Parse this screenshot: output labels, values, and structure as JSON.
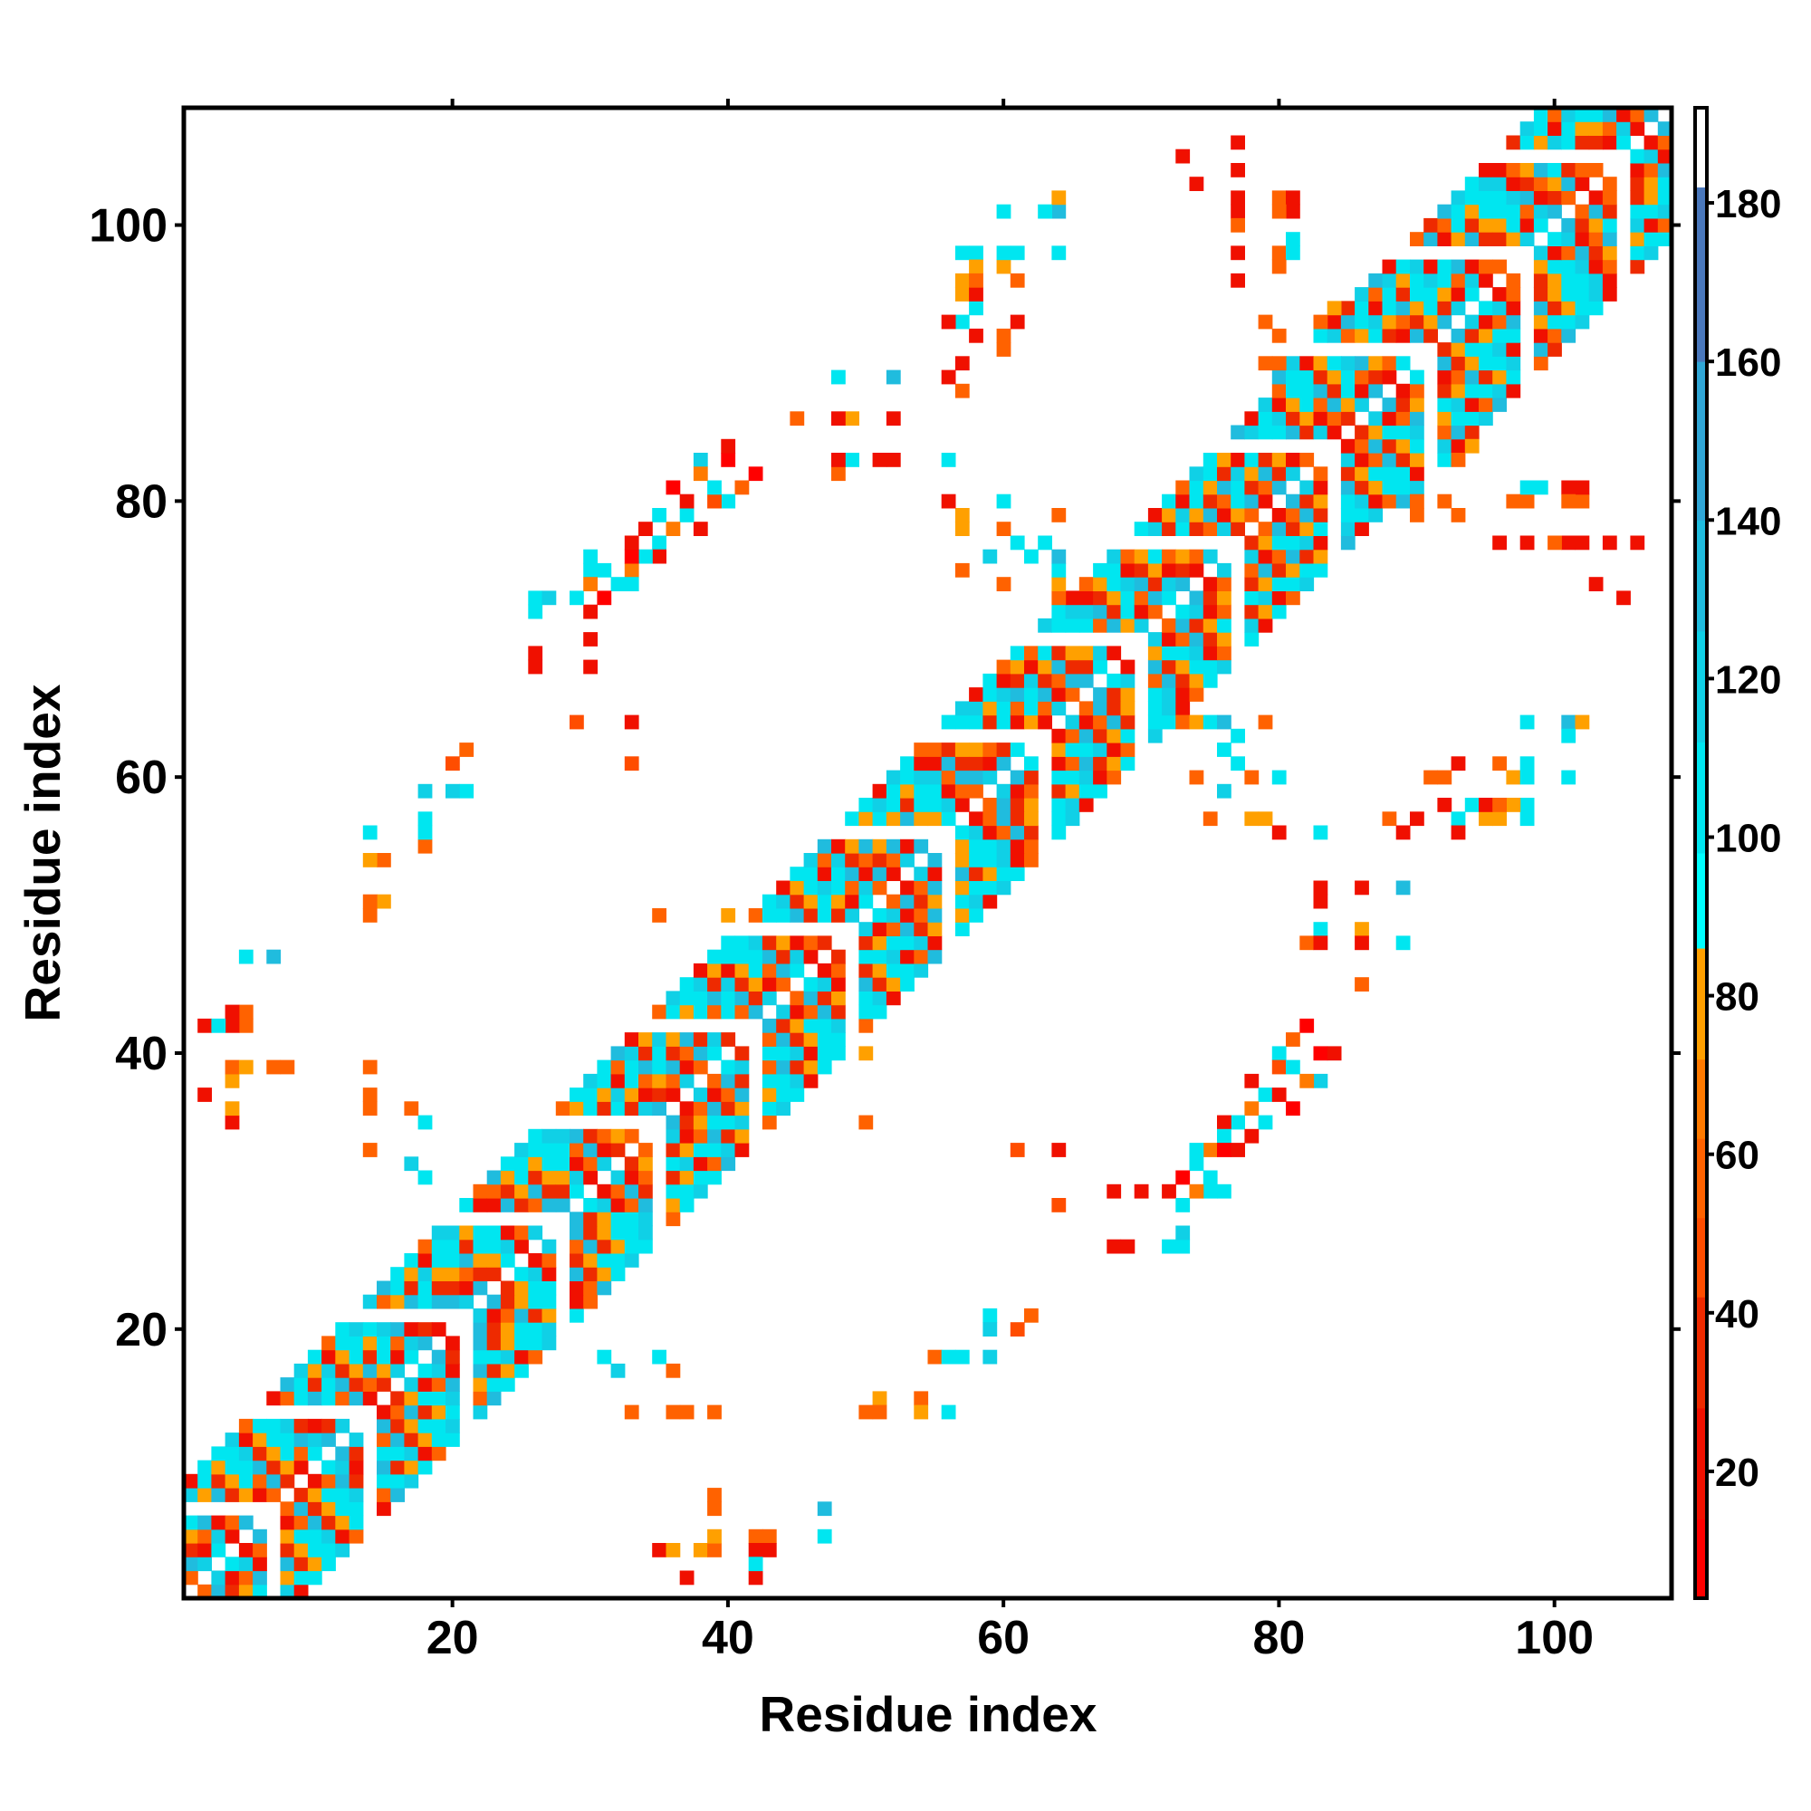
{
  "chart_data": {
    "type": "heatmap",
    "title": "",
    "xlabel": "Residue index",
    "ylabel": "Residue index",
    "xlim": [
      0.5,
      108.5
    ],
    "ylim": [
      0.5,
      108.5
    ],
    "x_ticks": [
      20,
      40,
      60,
      80,
      100
    ],
    "y_ticks": [
      20,
      40,
      60,
      80,
      100
    ],
    "x_tick_labels": [
      "20",
      "40",
      "60",
      "80",
      "100"
    ],
    "y_tick_labels": [
      "20",
      "40",
      "60",
      "80",
      "100"
    ],
    "symmetric": true,
    "grid": false,
    "n_residues": 108,
    "colorbar": {
      "range": [
        4,
        192
      ],
      "ticks": [
        20,
        40,
        60,
        80,
        100,
        120,
        140,
        160,
        180
      ],
      "tick_labels": [
        "20",
        "40",
        "60",
        "80",
        "100",
        "120",
        "140",
        "160",
        "180"
      ],
      "placement": "right",
      "bins": [
        {
          "max": 14,
          "color": "#ff0000"
        },
        {
          "max": 28,
          "color": "#f01000"
        },
        {
          "max": 42,
          "color": "#ee2a00"
        },
        {
          "max": 52,
          "color": "#ff4d00"
        },
        {
          "max": 62,
          "color": "#ff6200"
        },
        {
          "max": 72,
          "color": "#ff7a00"
        },
        {
          "max": 86,
          "color": "#ffa000"
        },
        {
          "max": 98,
          "color": "#00ffff"
        },
        {
          "max": 112,
          "color": "#00e6f0"
        },
        {
          "max": 126,
          "color": "#10d0e6"
        },
        {
          "max": 140,
          "color": "#20bcde"
        },
        {
          "max": 160,
          "color": "#30a6d6"
        },
        {
          "max": 182,
          "color": "#4a78bc"
        },
        {
          "max": 999,
          "color": "#ffffff"
        }
      ]
    },
    "band": {
      "description_offsets": [
        1,
        2,
        3,
        4,
        5,
        6,
        7,
        8
      ],
      "offset_values": [
        100,
        120,
        20,
        60,
        130,
        40,
        75,
        105
      ],
      "row_variation": "310241352041325104231450213402153042130524130254103214502314052134025130421053241302514203541023510432"
    },
    "contacts": [
      [
        82,
        42,
        10
      ],
      [
        81,
        41,
        60
      ],
      [
        83,
        40,
        10
      ],
      [
        80,
        40,
        110
      ],
      [
        84,
        40,
        20
      ],
      [
        80,
        39,
        45
      ],
      [
        81,
        39,
        100
      ],
      [
        83,
        38,
        120
      ],
      [
        82,
        38,
        70
      ],
      [
        78,
        38,
        15
      ],
      [
        79,
        37,
        110
      ],
      [
        80,
        37,
        20
      ],
      [
        81,
        36,
        10
      ],
      [
        78,
        36,
        65
      ],
      [
        77,
        35,
        110
      ],
      [
        76,
        35,
        20
      ],
      [
        79,
        35,
        110
      ],
      [
        78,
        34,
        15
      ],
      [
        76,
        34,
        100
      ],
      [
        75,
        33,
        70
      ],
      [
        74,
        33,
        110
      ],
      [
        76,
        33,
        10
      ],
      [
        77,
        33,
        25
      ],
      [
        74,
        32,
        110
      ],
      [
        73,
        31,
        10
      ],
      [
        75,
        31,
        100
      ],
      [
        76,
        30,
        110
      ],
      [
        75,
        30,
        110
      ],
      [
        72,
        30,
        20
      ],
      [
        73,
        29,
        110
      ],
      [
        74,
        30,
        70
      ],
      [
        61,
        33,
        45
      ],
      [
        64,
        33,
        15
      ],
      [
        64,
        29,
        45
      ],
      [
        68,
        30,
        15
      ],
      [
        70,
        30,
        20
      ],
      [
        68,
        26,
        15
      ],
      [
        69,
        26,
        15
      ],
      [
        72,
        26,
        110
      ],
      [
        73,
        26,
        110
      ],
      [
        73,
        27,
        120
      ],
      [
        59,
        21,
        110
      ],
      [
        59,
        20,
        120
      ],
      [
        61,
        20,
        45
      ],
      [
        62,
        21,
        60
      ],
      [
        55,
        18,
        60
      ],
      [
        56,
        18,
        110
      ],
      [
        57,
        18,
        110
      ],
      [
        59,
        18,
        120
      ],
      [
        50,
        14,
        60
      ],
      [
        51,
        15,
        75
      ],
      [
        51,
        14,
        60
      ],
      [
        54,
        15,
        60
      ],
      [
        54,
        14,
        75
      ],
      [
        56,
        14,
        110
      ],
      [
        33,
        14,
        60
      ],
      [
        36,
        14,
        60
      ],
      [
        37,
        14,
        60
      ],
      [
        39,
        14,
        60
      ],
      [
        35,
        18,
        110
      ],
      [
        36,
        17,
        60
      ],
      [
        32,
        17,
        120
      ],
      [
        31,
        18,
        110
      ],
      [
        39,
        8,
        60
      ],
      [
        39,
        7,
        60
      ],
      [
        38,
        4,
        75
      ],
      [
        39,
        4,
        60
      ],
      [
        39,
        5,
        75
      ],
      [
        42,
        5,
        60
      ],
      [
        43,
        5,
        60
      ],
      [
        42,
        4,
        15
      ],
      [
        43,
        4,
        15
      ],
      [
        35,
        4,
        15
      ],
      [
        36,
        4,
        75
      ],
      [
        37,
        2,
        15
      ],
      [
        42,
        2,
        15
      ],
      [
        42,
        3,
        110
      ],
      [
        47,
        7,
        140
      ],
      [
        47,
        5,
        110
      ],
      [
        47,
        39,
        110
      ],
      [
        47,
        40,
        110
      ],
      [
        48,
        40,
        110
      ],
      [
        50,
        40,
        75
      ],
      [
        50,
        35,
        60
      ],
      [
        83,
        52,
        15
      ],
      [
        83,
        51,
        15
      ],
      [
        86,
        52,
        15
      ],
      [
        89,
        52,
        130
      ],
      [
        83,
        49,
        110
      ],
      [
        82,
        48,
        60
      ],
      [
        83,
        48,
        15
      ],
      [
        86,
        49,
        75
      ],
      [
        86,
        48,
        15
      ],
      [
        89,
        48,
        110
      ],
      [
        86,
        45,
        60
      ],
      [
        75,
        57,
        60
      ],
      [
        78,
        57,
        75
      ],
      [
        79,
        57,
        75
      ],
      [
        80,
        56,
        15
      ],
      [
        83,
        56,
        110
      ],
      [
        88,
        57,
        60
      ],
      [
        89,
        56,
        15
      ],
      [
        90,
        57,
        15
      ],
      [
        92,
        58,
        15
      ],
      [
        93,
        57,
        110
      ],
      [
        94,
        58,
        110
      ],
      [
        95,
        57,
        75
      ],
      [
        96,
        57,
        75
      ],
      [
        98,
        58,
        110
      ],
      [
        98,
        57,
        110
      ],
      [
        93,
        56,
        15
      ],
      [
        91,
        60,
        60
      ],
      [
        96,
        61,
        60
      ],
      [
        97,
        60,
        75
      ],
      [
        98,
        61,
        110
      ],
      [
        101,
        60,
        110
      ],
      [
        98,
        64,
        110
      ],
      [
        101,
        64,
        130
      ],
      [
        102,
        64,
        75
      ],
      [
        93,
        61,
        15
      ],
      [
        92,
        60,
        60
      ],
      [
        73,
        64,
        60
      ],
      [
        74,
        64,
        75
      ],
      [
        75,
        64,
        110
      ],
      [
        76,
        64,
        140
      ],
      [
        77,
        63,
        110
      ],
      [
        76,
        62,
        110
      ],
      [
        74,
        60,
        60
      ],
      [
        76,
        59,
        120
      ],
      [
        77,
        61,
        110
      ],
      [
        79,
        64,
        60
      ],
      [
        80,
        60,
        110
      ],
      [
        78,
        60,
        60
      ],
      [
        105,
        73,
        15
      ],
      [
        106,
        77,
        15
      ],
      [
        102,
        77,
        15
      ],
      [
        101,
        77,
        75
      ],
      [
        102,
        80,
        60
      ],
      [
        102,
        81,
        15
      ],
      [
        98,
        77,
        15
      ],
      [
        98,
        80,
        60
      ],
      [
        99,
        81,
        110
      ],
      [
        93,
        79,
        60
      ],
      [
        93,
        83,
        60
      ],
      [
        94,
        84,
        75
      ],
      [
        90,
        79,
        60
      ],
      [
        90,
        82,
        15
      ],
      [
        81,
        98,
        110
      ],
      [
        80,
        97,
        60
      ],
      [
        80,
        98,
        60
      ],
      [
        81,
        101,
        15
      ],
      [
        80,
        101,
        60
      ],
      [
        77,
        96,
        15
      ],
      [
        77,
        100,
        60
      ],
      [
        77,
        101,
        15
      ],
      [
        77,
        104,
        15
      ],
      [
        74,
        103,
        15
      ],
      [
        80,
        88,
        60
      ],
      [
        80,
        90,
        60
      ],
      [
        80,
        92,
        60
      ],
      [
        82,
        89,
        110
      ],
      [
        101,
        63,
        110
      ],
      [
        98,
        60,
        110
      ],
      [
        97,
        58,
        75
      ],
      [
        95,
        58,
        15
      ],
      [
        96,
        58,
        60
      ]
    ]
  }
}
